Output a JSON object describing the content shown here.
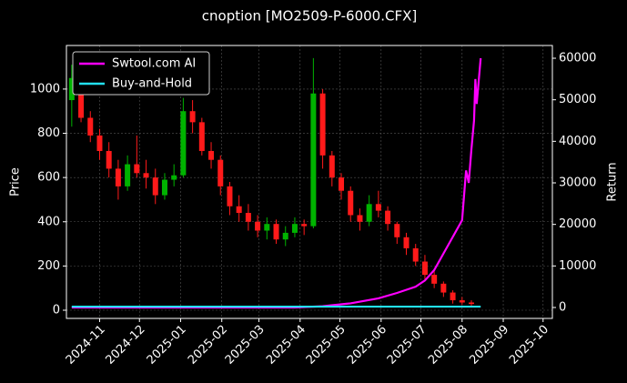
{
  "chart_data": {
    "type": "candlestick",
    "title": "cnoption [MO2509-P-6000.CFX]",
    "y_label": "Price",
    "y2_label": "Return",
    "grid": true,
    "legend": "upper left",
    "xlim": [
      "2024-10-07",
      "2025-10-08"
    ],
    "xticks": [
      "2024-11",
      "2024-12",
      "2025-01",
      "2025-02",
      "2025-03",
      "2025-04",
      "2025-05",
      "2025-06",
      "2025-07",
      "2025-08",
      "2025-09",
      "2025-10"
    ],
    "ylim": [
      -37,
      1197
    ],
    "yticks": [
      0,
      200,
      400,
      600,
      800,
      1000
    ],
    "y2lim": [
      -2630,
      63070
    ],
    "y2ticks": [
      0,
      10000,
      20000,
      30000,
      40000,
      50000,
      60000
    ],
    "candles": {
      "up_color": "#00b300",
      "down_color": "#ff1a1a",
      "x": [
        "2024-10-11",
        "2024-10-18",
        "2024-10-25",
        "2024-11-01",
        "2024-11-08",
        "2024-11-15",
        "2024-11-22",
        "2024-11-29",
        "2024-12-06",
        "2024-12-13",
        "2024-12-20",
        "2024-12-27",
        "2025-01-03",
        "2025-01-10",
        "2025-01-17",
        "2025-01-24",
        "2025-01-31",
        "2025-02-07",
        "2025-02-14",
        "2025-02-21",
        "2025-02-28",
        "2025-03-07",
        "2025-03-14",
        "2025-03-21",
        "2025-03-28",
        "2025-04-04",
        "2025-04-11",
        "2025-04-18",
        "2025-04-25",
        "2025-05-02",
        "2025-05-09",
        "2025-05-16",
        "2025-05-23",
        "2025-05-30",
        "2025-06-06",
        "2025-06-13",
        "2025-06-20",
        "2025-06-27",
        "2025-07-04",
        "2025-07-11",
        "2025-07-18",
        "2025-07-25",
        "2025-08-01",
        "2025-08-08"
      ],
      "open": [
        950,
        1050,
        870,
        790,
        720,
        640,
        560,
        660,
        620,
        600,
        520,
        590,
        610,
        900,
        850,
        720,
        680,
        560,
        470,
        440,
        400,
        360,
        390,
        320,
        350,
        390,
        380,
        980,
        700,
        600,
        540,
        430,
        400,
        480,
        450,
        390,
        330,
        280,
        220,
        160,
        120,
        80,
        45,
        35
      ],
      "high": [
        1110,
        1080,
        900,
        820,
        760,
        680,
        700,
        790,
        680,
        640,
        620,
        660,
        960,
        950,
        870,
        760,
        700,
        580,
        520,
        480,
        430,
        420,
        410,
        380,
        420,
        410,
        1140,
        1000,
        720,
        620,
        560,
        460,
        520,
        540,
        470,
        400,
        350,
        300,
        250,
        180,
        130,
        90,
        60,
        45
      ],
      "low": [
        830,
        850,
        760,
        680,
        600,
        500,
        540,
        600,
        550,
        480,
        500,
        560,
        600,
        800,
        700,
        640,
        520,
        430,
        400,
        360,
        330,
        320,
        300,
        290,
        330,
        340,
        370,
        640,
        560,
        500,
        400,
        360,
        380,
        420,
        360,
        300,
        250,
        200,
        140,
        100,
        60,
        30,
        25,
        20
      ],
      "close": [
        1050,
        870,
        790,
        720,
        640,
        560,
        660,
        620,
        600,
        520,
        590,
        610,
        900,
        850,
        720,
        680,
        560,
        470,
        440,
        400,
        360,
        390,
        320,
        350,
        390,
        380,
        980,
        700,
        600,
        540,
        430,
        400,
        480,
        450,
        390,
        330,
        280,
        220,
        160,
        120,
        80,
        45,
        35,
        28
      ]
    },
    "series": [
      {
        "name": "Swtool.com AI",
        "color": "#ff00ff",
        "axis": "y2",
        "x": [
          "2024-10-11",
          "2025-03-28",
          "2025-04-18",
          "2025-05-09",
          "2025-05-30",
          "2025-06-13",
          "2025-06-27",
          "2025-07-04",
          "2025-07-11",
          "2025-07-18",
          "2025-07-25",
          "2025-08-01",
          "2025-08-04",
          "2025-08-06",
          "2025-08-08",
          "2025-08-10",
          "2025-08-11",
          "2025-08-12",
          "2025-08-15"
        ],
        "values": [
          0,
          0,
          300,
          1000,
          2200,
          3500,
          5000,
          6500,
          9000,
          13000,
          17000,
          21000,
          33000,
          30000,
          38000,
          45000,
          55000,
          49000,
          60000
        ]
      },
      {
        "name": "Buy-and-Hold",
        "color": "#22e0f0",
        "axis": "y2",
        "x": [
          "2024-10-11",
          "2025-08-15"
        ],
        "values": [
          200,
          200
        ]
      }
    ]
  }
}
